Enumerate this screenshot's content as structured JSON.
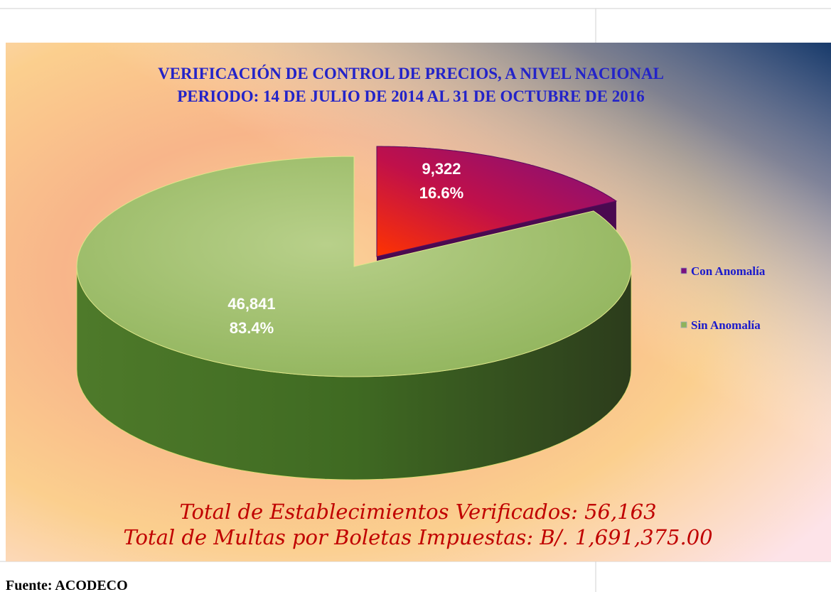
{
  "chart_data": {
    "type": "pie3d",
    "title": [
      "VERIFICACIÓN  DE  CONTROL  DE  PRECIOS,  A  NIVEL  NACIONAL",
      "PERIODO:  14 DE JULIO DE 2014 AL  31 DE OCTUBRE  DE 2016"
    ],
    "categories": [
      "Con Anomalía",
      "Sin Anomalía"
    ],
    "values": [
      9322,
      46841
    ],
    "value_labels": [
      "9,322",
      "46,841"
    ],
    "percent_labels": [
      "16.6%",
      "83.4%"
    ],
    "colors": [
      "#7a1080",
      "#8fb35a"
    ],
    "legend": "right",
    "annotations": [
      "Total de Establecimientos Verificados:  56,163",
      "Total de Multas por Boletas Impuestas: B/. 1,691,375.00"
    ]
  },
  "footer": "Fuente: ACODECO"
}
